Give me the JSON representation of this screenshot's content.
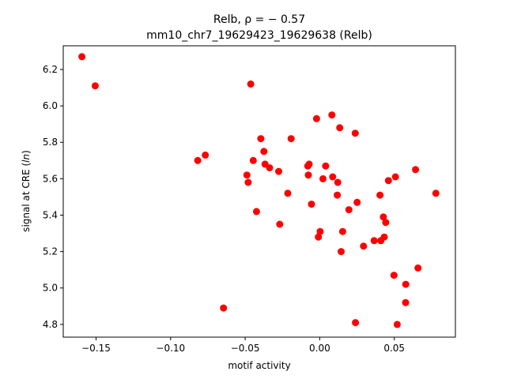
{
  "chart_data": {
    "type": "scatter",
    "title_line1": "Relb, ρ = − 0.57",
    "title_line2": "mm10_chr7_19629423_19629638 (Relb)",
    "xlabel": "motif activity",
    "ylabel_main": "signal at CRE (",
    "ylabel_italic": "ln",
    "ylabel_end": ")",
    "xlim": [
      -0.172,
      0.091
    ],
    "ylim": [
      4.73,
      6.33
    ],
    "xticks": [
      {
        "value": -0.15,
        "label": "−0.15"
      },
      {
        "value": -0.1,
        "label": "−0.10"
      },
      {
        "value": -0.05,
        "label": "−0.05"
      },
      {
        "value": 0.0,
        "label": "0.00"
      },
      {
        "value": 0.05,
        "label": "0.05"
      }
    ],
    "yticks": [
      {
        "value": 4.8,
        "label": "4.8"
      },
      {
        "value": 5.0,
        "label": "5.0"
      },
      {
        "value": 5.2,
        "label": "5.2"
      },
      {
        "value": 5.4,
        "label": "5.4"
      },
      {
        "value": 5.6,
        "label": "5.6"
      },
      {
        "value": 5.8,
        "label": "5.8"
      },
      {
        "value": 6.0,
        "label": "6.0"
      },
      {
        "value": 6.2,
        "label": "6.2"
      }
    ],
    "marker_color": "#ff0000",
    "grid": false,
    "points": [
      {
        "x": -0.1595,
        "y": 6.27
      },
      {
        "x": -0.1506,
        "y": 6.11
      },
      {
        "x": -0.0463,
        "y": 6.12
      },
      {
        "x": 0.0082,
        "y": 5.95
      },
      {
        "x": -0.0021,
        "y": 5.93
      },
      {
        "x": 0.0134,
        "y": 5.88
      },
      {
        "x": 0.0238,
        "y": 5.85
      },
      {
        "x": -0.0192,
        "y": 5.82
      },
      {
        "x": -0.0395,
        "y": 5.82
      },
      {
        "x": -0.0374,
        "y": 5.75
      },
      {
        "x": -0.0767,
        "y": 5.73
      },
      {
        "x": -0.0446,
        "y": 5.7
      },
      {
        "x": -0.0818,
        "y": 5.7
      },
      {
        "x": -0.0367,
        "y": 5.68
      },
      {
        "x": -0.008,
        "y": 5.67
      },
      {
        "x": -0.0071,
        "y": 5.68
      },
      {
        "x": 0.004,
        "y": 5.67
      },
      {
        "x": -0.0336,
        "y": 5.66
      },
      {
        "x": 0.0643,
        "y": 5.65
      },
      {
        "x": -0.0275,
        "y": 5.64
      },
      {
        "x": -0.0488,
        "y": 5.62
      },
      {
        "x": -0.0076,
        "y": 5.62
      },
      {
        "x": 0.0087,
        "y": 5.61
      },
      {
        "x": 0.0508,
        "y": 5.61
      },
      {
        "x": 0.0022,
        "y": 5.6
      },
      {
        "x": 0.0461,
        "y": 5.59
      },
      {
        "x": 0.0121,
        "y": 5.58
      },
      {
        "x": -0.048,
        "y": 5.58
      },
      {
        "x": -0.0214,
        "y": 5.52
      },
      {
        "x": 0.0118,
        "y": 5.51
      },
      {
        "x": 0.0404,
        "y": 5.51
      },
      {
        "x": 0.0779,
        "y": 5.52
      },
      {
        "x": 0.0251,
        "y": 5.47
      },
      {
        "x": -0.0055,
        "y": 5.46
      },
      {
        "x": 0.0196,
        "y": 5.43
      },
      {
        "x": -0.0424,
        "y": 5.42
      },
      {
        "x": 0.0427,
        "y": 5.39
      },
      {
        "x": 0.0443,
        "y": 5.36
      },
      {
        "x": -0.0268,
        "y": 5.35
      },
      {
        "x": 0.0003,
        "y": 5.31
      },
      {
        "x": 0.0154,
        "y": 5.31
      },
      {
        "x": -0.0009,
        "y": 5.28
      },
      {
        "x": 0.0433,
        "y": 5.28
      },
      {
        "x": 0.0365,
        "y": 5.26
      },
      {
        "x": 0.041,
        "y": 5.26
      },
      {
        "x": 0.0294,
        "y": 5.23
      },
      {
        "x": 0.0144,
        "y": 5.2
      },
      {
        "x": 0.0659,
        "y": 5.11
      },
      {
        "x": 0.0498,
        "y": 5.07
      },
      {
        "x": 0.0577,
        "y": 5.02
      },
      {
        "x": 0.0576,
        "y": 4.92
      },
      {
        "x": -0.0645,
        "y": 4.89
      },
      {
        "x": 0.024,
        "y": 4.81
      },
      {
        "x": 0.052,
        "y": 4.8
      }
    ]
  }
}
